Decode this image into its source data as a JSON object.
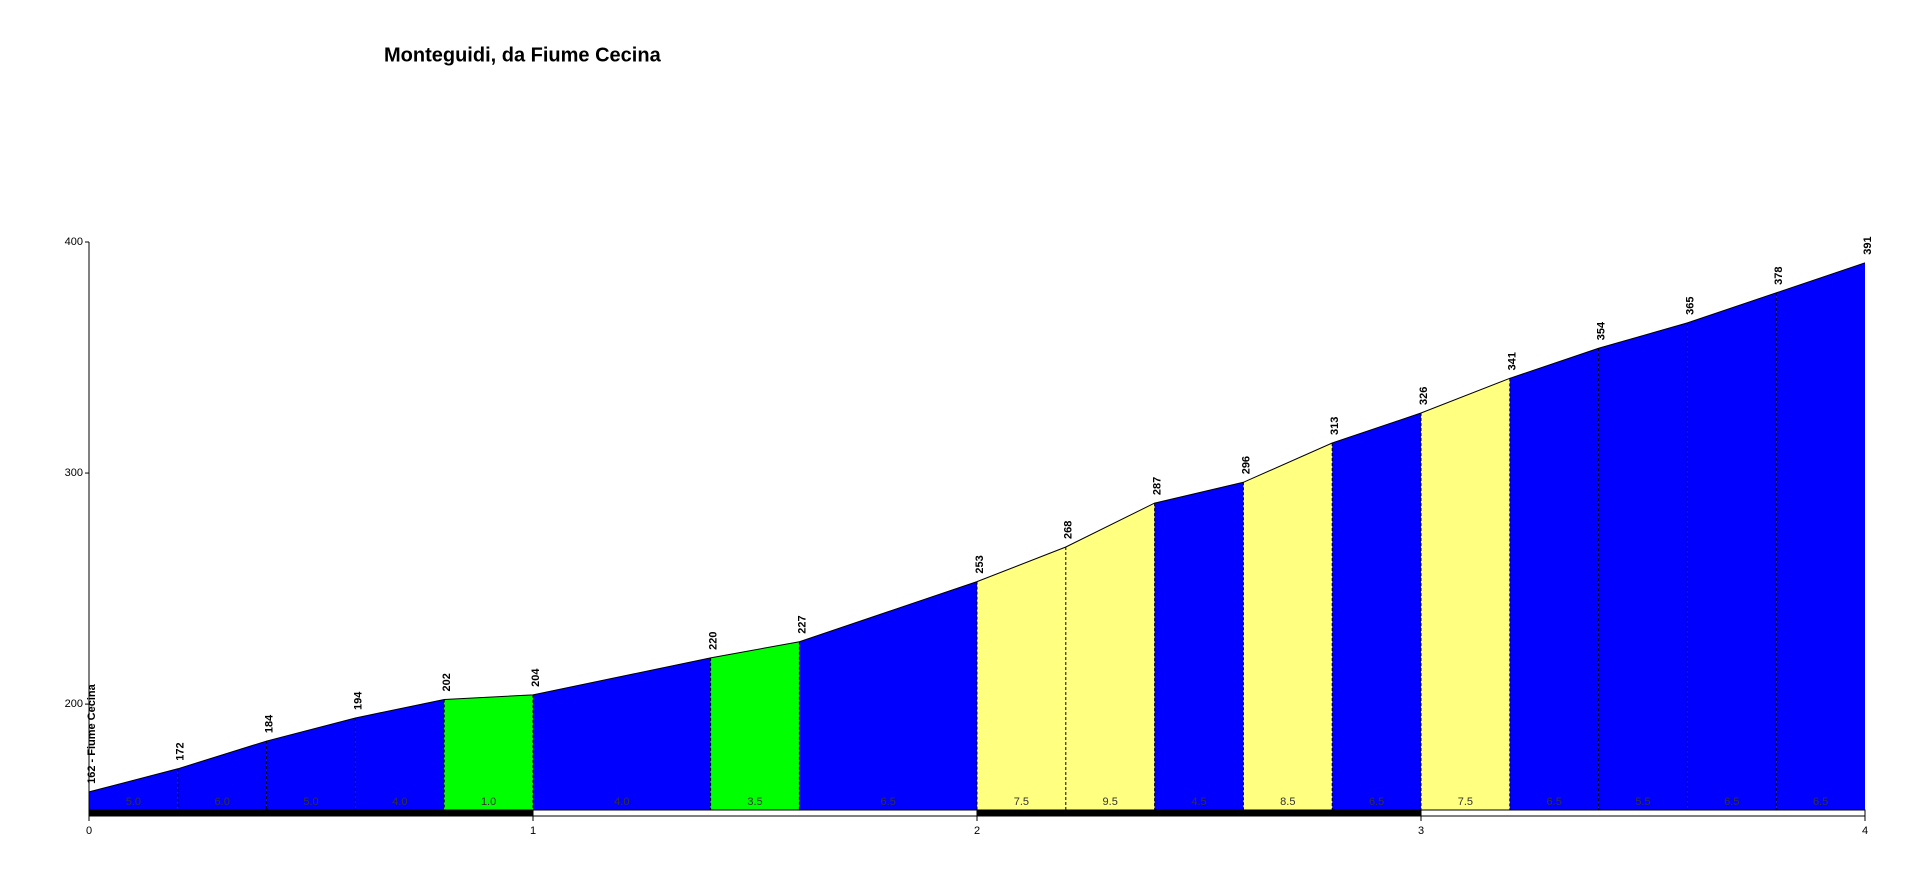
{
  "chart_data": {
    "type": "area",
    "title": "Monteguidi, da Fiume Cecina",
    "x": [
      0,
      0.2,
      0.4,
      0.6,
      0.8,
      1.0,
      1.4,
      1.6,
      2.0,
      2.2,
      2.4,
      2.6,
      2.8,
      3.0,
      3.2,
      3.4,
      3.6,
      3.8,
      4.0
    ],
    "values": [
      162,
      172,
      184,
      194,
      202,
      204,
      220,
      227,
      253,
      268,
      287,
      296,
      313,
      326,
      341,
      354,
      365,
      378,
      391
    ],
    "value_labels": [
      "162 - Fiume Cecina",
      "172",
      "184",
      "194",
      "202",
      "204",
      "220",
      "227",
      "253",
      "268",
      "287",
      "296",
      "313",
      "326",
      "341",
      "354",
      "365",
      "378",
      "391"
    ],
    "grade_labels": [
      "5.0",
      "6.0",
      "5.0",
      "4.0",
      "1.0",
      "4.0",
      "3.5",
      "6.5",
      "7.5",
      "9.5",
      "4.5",
      "8.5",
      "6.5",
      "7.5",
      "6.5",
      "5.5",
      "6.5",
      "6.5"
    ],
    "grade_colors": [
      "#0000ff",
      "#0000ff",
      "#0000ff",
      "#0000ff",
      "#00ff00",
      "#0000ff",
      "#00ff00",
      "#0000ff",
      "#ffff80",
      "#ffff80",
      "#0000ff",
      "#ffff80",
      "#0000ff",
      "#ffff80",
      "#0000ff",
      "#0000ff",
      "#0000ff",
      "#0000ff"
    ],
    "xlim": [
      0,
      4
    ],
    "xticks": [
      0,
      1,
      2,
      3,
      4
    ],
    "ylim": [
      152,
      400
    ],
    "yticks": [
      200,
      300,
      400
    ]
  }
}
